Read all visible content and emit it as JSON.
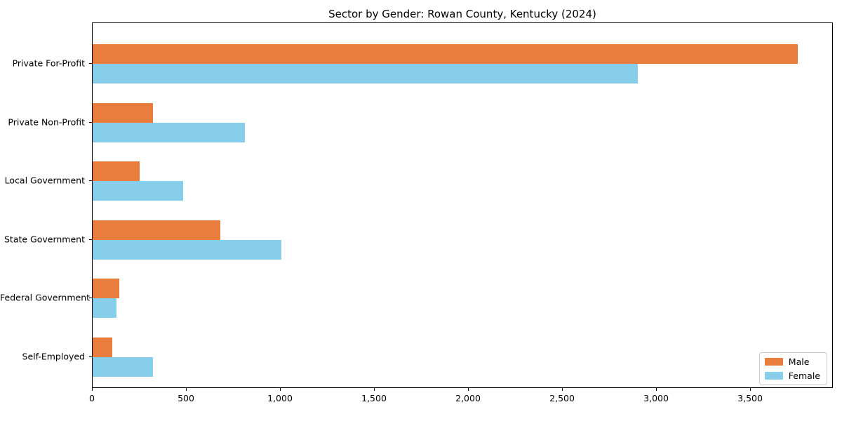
{
  "chart_data": {
    "type": "bar",
    "orientation": "horizontal",
    "title": "Sector by Gender: Rowan County, Kentucky (2024)",
    "categories": [
      "Private For-Profit",
      "Private Non-Profit",
      "Local Government",
      "State Government",
      "Federal Government",
      "Self-Employed"
    ],
    "series": [
      {
        "name": "Male",
        "color": "#E87D3E",
        "values": [
          3750,
          320,
          250,
          680,
          140,
          105
        ]
      },
      {
        "name": "Female",
        "color": "#87CEEB",
        "values": [
          2900,
          810,
          480,
          1005,
          125,
          320
        ]
      }
    ],
    "xlabel": "",
    "ylabel": "",
    "xlim": [
      0,
      3940
    ],
    "xticks": [
      0,
      500,
      1000,
      1500,
      2000,
      2500,
      3000,
      3500
    ],
    "xtick_labels": [
      "0",
      "500",
      "1,000",
      "1,500",
      "2,000",
      "2,500",
      "3,000",
      "3,500"
    ],
    "grid": false,
    "legend": {
      "position": "lower right",
      "entries": [
        "Male",
        "Female"
      ]
    }
  }
}
